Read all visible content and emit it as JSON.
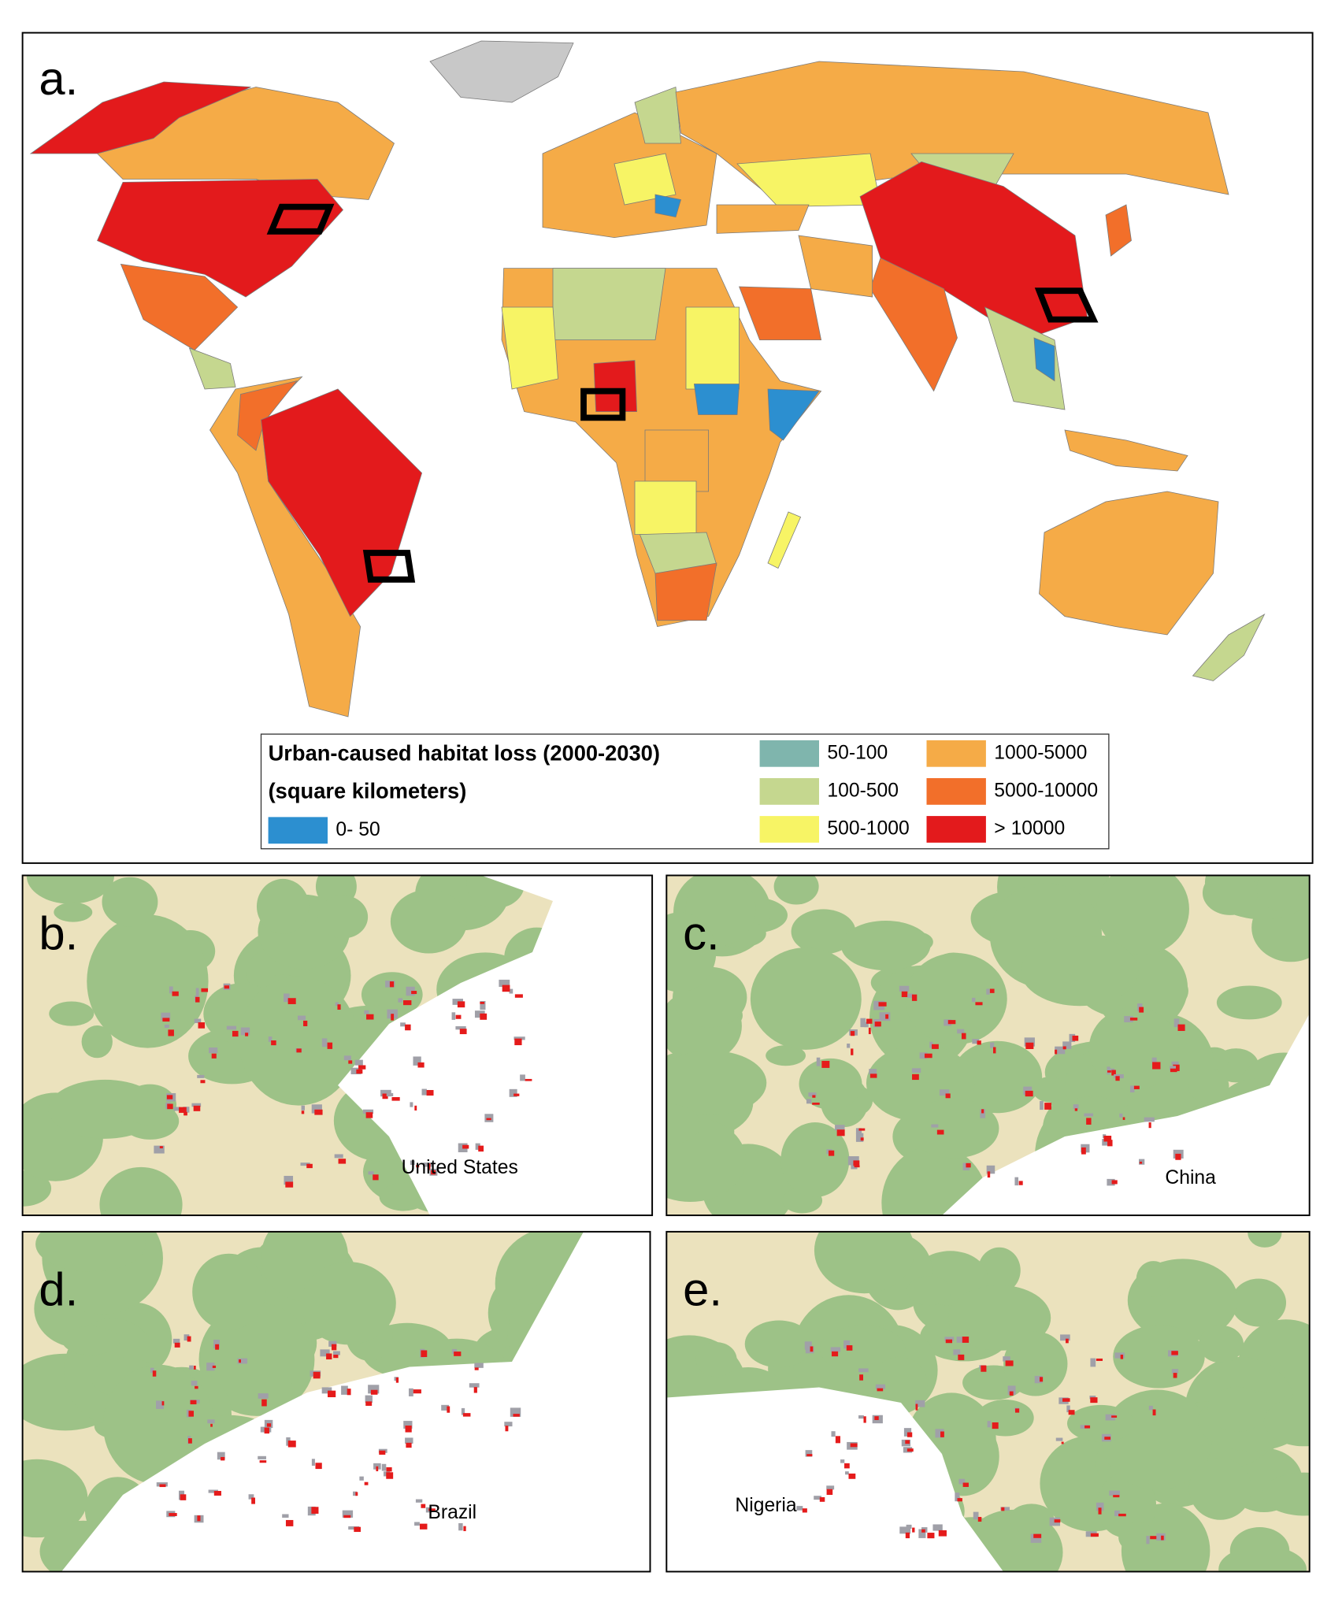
{
  "panels": [
    {
      "label": "a."
    },
    {
      "label": "b.",
      "region": "United States"
    },
    {
      "label": "c.",
      "region": "China"
    },
    {
      "label": "d.",
      "region": "Brazil"
    },
    {
      "label": "e.",
      "region": "Nigeria"
    }
  ],
  "legend": {
    "title": "Urban-caused habitat loss (2000-2030)",
    "subtitle": "(square kilometers)",
    "classes": [
      {
        "label": "0- 50",
        "color": "#2c8fd0"
      },
      {
        "label": "50-100",
        "color": "#7fb5ad"
      },
      {
        "label": "100-500",
        "color": "#c5d78f"
      },
      {
        "label": "500-1000",
        "color": "#f7f465"
      },
      {
        "label": "1000-5000",
        "color": "#f5ab47"
      },
      {
        "label": "5000-10000",
        "color": "#f26f2a"
      },
      {
        "label": "> 10000",
        "color": "#e31a1c"
      }
    ]
  }
}
